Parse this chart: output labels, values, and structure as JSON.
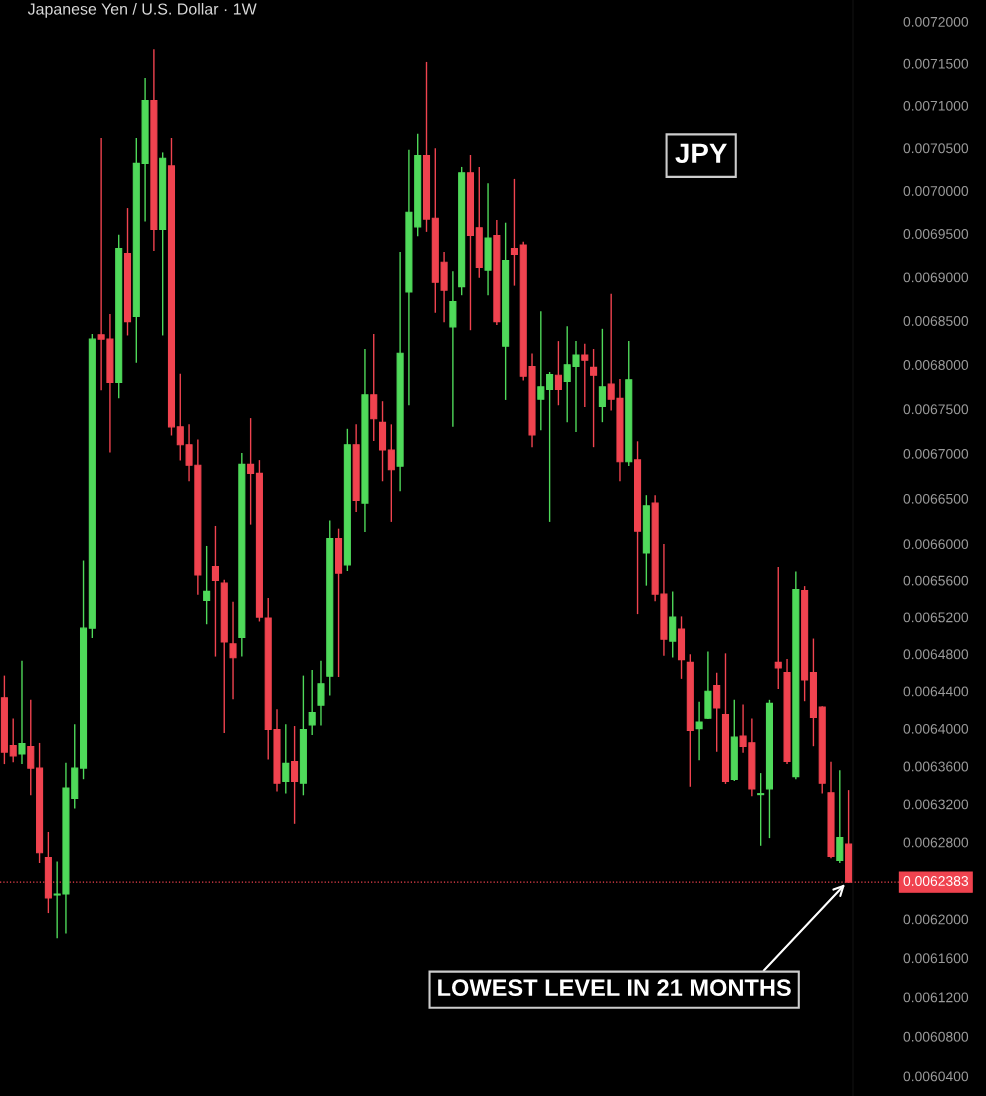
{
  "chart_data": {
    "type": "candlestick",
    "title": "Japanese Yen / U.S. Dollar · 1W",
    "categories": [
      null,
      null,
      null,
      null,
      null,
      null,
      null,
      null,
      null,
      null,
      null,
      null,
      null,
      null,
      null,
      null,
      null,
      null,
      null,
      null,
      null,
      null,
      null,
      null,
      null,
      null,
      null,
      null,
      null,
      null,
      null,
      null,
      null,
      null,
      null,
      null,
      null,
      null,
      null,
      null,
      null,
      null,
      null,
      null,
      null,
      null,
      null,
      null,
      null,
      null,
      null,
      null,
      null,
      null,
      null,
      null,
      null,
      null,
      null,
      null,
      null,
      null,
      null,
      null,
      null,
      null,
      null,
      null,
      null,
      null,
      null,
      null,
      null,
      null,
      null,
      null,
      null,
      null,
      null,
      null,
      null,
      null,
      null,
      null,
      null,
      null,
      null,
      null,
      null,
      null,
      null,
      null,
      null,
      null,
      null,
      null,
      null
    ],
    "ohlc": [
      [
        0.006433,
        0.006456,
        0.006363,
        0.006375
      ],
      [
        0.006382,
        0.00641,
        0.006365,
        0.006371
      ],
      [
        0.006373,
        0.006472,
        0.006363,
        0.006384
      ],
      [
        0.006381,
        0.00643,
        0.00633,
        0.006358
      ],
      [
        0.006358,
        0.006384,
        0.006259,
        0.006269
      ],
      [
        0.006264,
        0.00629,
        0.006207,
        0.006222
      ],
      [
        0.006225,
        0.006259,
        0.006181,
        0.006226
      ],
      [
        0.006226,
        0.006363,
        0.006186,
        0.006337
      ],
      [
        0.006326,
        0.006404,
        0.006316,
        0.006358
      ],
      [
        0.006358,
        0.006581,
        0.006347,
        0.006508
      ],
      [
        0.006508,
        0.006834,
        0.006498,
        0.006829
      ],
      [
        0.006834,
        0.007061,
        0.006772,
        0.006829
      ],
      [
        0.006829,
        0.006857,
        0.006702,
        0.00678
      ],
      [
        0.00678,
        0.006948,
        0.006763,
        0.006933
      ],
      [
        0.006927,
        0.006979,
        0.006834,
        0.006849
      ],
      [
        0.006855,
        0.007061,
        0.006803,
        0.007032
      ],
      [
        0.007032,
        0.007132,
        0.006965,
        0.007106
      ],
      [
        0.007106,
        0.007166,
        0.006931,
        0.006955
      ],
      [
        0.006955,
        0.007044,
        0.006834,
        0.007038
      ],
      [
        0.007029,
        0.007061,
        0.006721,
        0.00673
      ],
      [
        0.00673,
        0.006789,
        0.006693,
        0.00671
      ],
      [
        0.00671,
        0.006732,
        0.00667,
        0.006687
      ],
      [
        0.006687,
        0.006715,
        0.006545,
        0.006566
      ],
      [
        0.006538,
        0.006597,
        0.006513,
        0.006548
      ],
      [
        0.006575,
        0.006619,
        0.006478,
        0.00656
      ],
      [
        0.006557,
        0.00656,
        0.006396,
        0.006493
      ],
      [
        0.006491,
        0.006536,
        0.006432,
        0.006476
      ],
      [
        0.006498,
        0.0067,
        0.006478,
        0.006688
      ],
      [
        0.006688,
        0.006739,
        0.006622,
        0.006678
      ],
      [
        0.006678,
        0.006692,
        0.006516,
        0.00652
      ],
      [
        0.006519,
        0.00654,
        0.006368,
        0.006399
      ],
      [
        0.006399,
        0.00642,
        0.006334,
        0.006342
      ],
      [
        0.006344,
        0.006404,
        0.006332,
        0.006363
      ],
      [
        0.006365,
        0.006402,
        0.0063,
        0.006344
      ],
      [
        0.006342,
        0.006456,
        0.00633,
        0.006399
      ],
      [
        0.006404,
        0.006462,
        0.006394,
        0.006417
      ],
      [
        0.006425,
        0.006472,
        0.006404,
        0.006448
      ],
      [
        0.006456,
        0.006625,
        0.006436,
        0.006606
      ],
      [
        0.006606,
        0.006616,
        0.006456,
        0.006568
      ],
      [
        0.006577,
        0.006727,
        0.006571,
        0.00671
      ],
      [
        0.00671,
        0.006732,
        0.006636,
        0.006648
      ],
      [
        0.006645,
        0.006817,
        0.006614,
        0.006766
      ],
      [
        0.006766,
        0.006834,
        0.006715,
        0.006739
      ],
      [
        0.006735,
        0.006758,
        0.00667,
        0.006704
      ],
      [
        0.006704,
        0.006732,
        0.006625,
        0.006682
      ],
      [
        0.006686,
        0.006928,
        0.006659,
        0.006813
      ],
      [
        0.006883,
        0.007047,
        0.006755,
        0.006975
      ],
      [
        0.006958,
        0.007066,
        0.006948,
        0.007041
      ],
      [
        0.007041,
        0.007151,
        0.006953,
        0.006967
      ],
      [
        0.006968,
        0.007049,
        0.00686,
        0.006894
      ],
      [
        0.006917,
        0.006928,
        0.006849,
        0.006885
      ],
      [
        0.006843,
        0.006906,
        0.006731,
        0.006872
      ],
      [
        0.006889,
        0.007027,
        0.00688,
        0.007021
      ],
      [
        0.007021,
        0.007041,
        0.00684,
        0.006948
      ],
      [
        0.006957,
        0.007027,
        0.0069,
        0.006911
      ],
      [
        0.006908,
        0.007008,
        0.00688,
        0.006945
      ],
      [
        0.006948,
        0.006965,
        0.006846,
        0.006849
      ],
      [
        0.006821,
        0.006962,
        0.006761,
        0.006919
      ],
      [
        0.006933,
        0.007013,
        0.006891,
        0.006926
      ],
      [
        0.006937,
        0.00694,
        0.006783,
        0.006787
      ],
      [
        0.006798,
        0.006812,
        0.006708,
        0.006721
      ],
      [
        0.006761,
        0.00686,
        0.006727,
        0.006775
      ],
      [
        0.006772,
        0.006791,
        0.006625,
        0.006789
      ],
      [
        0.006788,
        0.006826,
        0.006755,
        0.006772
      ],
      [
        0.006781,
        0.006843,
        0.006736,
        0.0068
      ],
      [
        0.006798,
        0.006826,
        0.006725,
        0.006811
      ],
      [
        0.006811,
        0.006823,
        0.006753,
        0.006805
      ],
      [
        0.006797,
        0.006817,
        0.006708,
        0.006788
      ],
      [
        0.006753,
        0.00684,
        0.006736,
        0.006775
      ],
      [
        0.006778,
        0.00688,
        0.006749,
        0.006761
      ],
      [
        0.006762,
        0.006783,
        0.00667,
        0.006691
      ],
      [
        0.006691,
        0.006826,
        0.006687,
        0.006783
      ],
      [
        0.006693,
        0.006713,
        0.006524,
        0.006614
      ],
      [
        0.00659,
        0.006653,
        0.006555,
        0.006642
      ],
      [
        0.006645,
        0.006653,
        0.006538,
        0.006545
      ],
      [
        0.006545,
        0.006599,
        0.006479,
        0.006496
      ],
      [
        0.006494,
        0.006547,
        0.006477,
        0.00652
      ],
      [
        0.006507,
        0.00652,
        0.006454,
        0.006474
      ],
      [
        0.006471,
        0.006479,
        0.006339,
        0.006398
      ],
      [
        0.0064,
        0.006428,
        0.006367,
        0.006407
      ],
      [
        0.006411,
        0.006482,
        0.006411,
        0.00644
      ],
      [
        0.006446,
        0.006459,
        0.006376,
        0.006422
      ],
      [
        0.006415,
        0.00648,
        0.006342,
        0.006344
      ],
      [
        0.006346,
        0.00643,
        0.006345,
        0.006391
      ],
      [
        0.006392,
        0.006425,
        0.006375,
        0.006381
      ],
      [
        0.006385,
        0.00641,
        0.006329,
        0.006336
      ],
      [
        0.00633,
        0.006352,
        0.006277,
        0.006331
      ],
      [
        0.006336,
        0.00643,
        0.006285,
        0.006427
      ],
      [
        0.006471,
        0.006574,
        0.006443,
        0.006465
      ],
      [
        0.00646,
        0.006474,
        0.006363,
        0.006365
      ],
      [
        0.006349,
        0.006569,
        0.006347,
        0.00655
      ],
      [
        0.006549,
        0.006553,
        0.00643,
        0.006452
      ],
      [
        0.00646,
        0.006496,
        0.006382,
        0.006412
      ],
      [
        0.006423,
        0.006423,
        0.006332,
        0.006342
      ],
      [
        0.006332,
        0.006364,
        0.006264,
        0.006265
      ],
      [
        0.006261,
        0.006355,
        0.006259,
        0.006285
      ],
      [
        0.006278,
        0.006334,
        0.0062383,
        0.0062383
      ]
    ],
    "colors": [
      "#f0434f",
      "#f0434f",
      "#4fd95a",
      "#f0434f",
      "#f0434f",
      "#f0434f",
      "#4fd95a",
      "#4fd95a",
      "#4fd95a",
      "#4fd95a",
      "#4fd95a",
      "#f0434f",
      "#f0434f",
      "#4fd95a",
      "#f0434f",
      "#4fd95a",
      "#4fd95a",
      "#f0434f",
      "#4fd95a",
      "#f0434f",
      "#f0434f",
      "#f0434f",
      "#f0434f",
      "#4fd95a",
      "#f0434f",
      "#f0434f",
      "#f0434f",
      "#4fd95a",
      "#f0434f",
      "#f0434f",
      "#f0434f",
      "#f0434f",
      "#4fd95a",
      "#f0434f",
      "#4fd95a",
      "#4fd95a",
      "#4fd95a",
      "#4fd95a",
      "#f0434f",
      "#4fd95a",
      "#f0434f",
      "#4fd95a",
      "#f0434f",
      "#f0434f",
      "#f0434f",
      "#4fd95a",
      "#4fd95a",
      "#4fd95a",
      "#f0434f",
      "#f0434f",
      "#f0434f",
      "#4fd95a",
      "#4fd95a",
      "#f0434f",
      "#f0434f",
      "#4fd95a",
      "#f0434f",
      "#4fd95a",
      "#f0434f",
      "#f0434f",
      "#f0434f",
      "#4fd95a",
      "#4fd95a",
      "#f0434f",
      "#4fd95a",
      "#4fd95a",
      "#f0434f",
      "#f0434f",
      "#4fd95a",
      "#f0434f",
      "#f0434f",
      "#4fd95a",
      "#f0434f",
      "#4fd95a",
      "#f0434f",
      "#f0434f",
      "#4fd95a",
      "#f0434f",
      "#f0434f",
      "#4fd95a",
      "#4fd95a",
      "#f0434f",
      "#f0434f",
      "#4fd95a",
      "#f0434f",
      "#f0434f",
      "#4fd95a",
      "#4fd95a",
      "#f0434f",
      "#f0434f",
      "#4fd95a",
      "#f0434f",
      "#f0434f",
      "#f0434f",
      "#f0434f",
      "#4fd95a",
      "#f0434f"
    ],
    "log": true,
    "ylim": [
      0.00602,
      0.007226
    ],
    "yticks": [
      {
        "value": 0.0072,
        "label": "0.0072000"
      },
      {
        "value": 0.00715,
        "label": "0.0071500"
      },
      {
        "value": 0.0071,
        "label": "0.0071000"
      },
      {
        "value": 0.00705,
        "label": "0.0070500"
      },
      {
        "value": 0.007,
        "label": "0.0070000"
      },
      {
        "value": 0.00695,
        "label": "0.0069500"
      },
      {
        "value": 0.0069,
        "label": "0.0069000"
      },
      {
        "value": 0.00685,
        "label": "0.0068500"
      },
      {
        "value": 0.0068,
        "label": "0.0068000"
      },
      {
        "value": 0.00675,
        "label": "0.0067500"
      },
      {
        "value": 0.0067,
        "label": "0.0067000"
      },
      {
        "value": 0.00665,
        "label": "0.0066500"
      },
      {
        "value": 0.0066,
        "label": "0.0066000"
      },
      {
        "value": 0.00656,
        "label": "0.0065600"
      },
      {
        "value": 0.00652,
        "label": "0.0065200"
      },
      {
        "value": 0.00648,
        "label": "0.0064800"
      },
      {
        "value": 0.00644,
        "label": "0.0064400"
      },
      {
        "value": 0.0064,
        "label": "0.0064000"
      },
      {
        "value": 0.00636,
        "label": "0.0063600"
      },
      {
        "value": 0.00632,
        "label": "0.0063200"
      },
      {
        "value": 0.00628,
        "label": "0.0062800"
      },
      {
        "value": 0.0062,
        "label": "0.0062000"
      },
      {
        "value": 0.00616,
        "label": "0.0061600"
      },
      {
        "value": 0.00612,
        "label": "0.0061200"
      },
      {
        "value": 0.00608,
        "label": "0.0060800"
      },
      {
        "value": 0.00604,
        "label": "0.0060400"
      }
    ],
    "ref_lines": [
      {
        "axis": "y",
        "value": 0.0062383,
        "label": "0.0062383",
        "color": "#f0434f",
        "line_style": "dotted"
      }
    ],
    "annotations": [
      "JPY",
      "LOWEST LEVEL IN 21 MONTHS"
    ],
    "grid": false,
    "legend": false
  }
}
